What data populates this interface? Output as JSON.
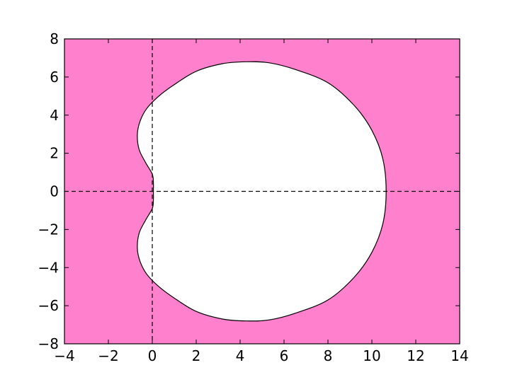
{
  "chart_data": {
    "type": "area",
    "title": "",
    "xlabel": "",
    "ylabel": "",
    "xlim": [
      -4,
      14
    ],
    "ylim": [
      -8,
      8
    ],
    "xticks": [
      -4,
      -2,
      0,
      2,
      4,
      6,
      8,
      10,
      12,
      14
    ],
    "yticks": [
      -8,
      -6,
      -4,
      -2,
      0,
      2,
      4,
      6,
      8
    ],
    "xtick_labels": [
      "−4",
      "−2",
      "0",
      "2",
      "4",
      "6",
      "8",
      "10",
      "12",
      "14"
    ],
    "ytick_labels": [
      "−8",
      "−6",
      "−4",
      "−2",
      "0",
      "2",
      "4",
      "6",
      "8"
    ],
    "grid": false,
    "legend": "none",
    "colors": {
      "shaded_region": "#ff80cc",
      "boundary": "#000000",
      "unshaded_region": "#ffffff",
      "axis_lines": "#000000"
    },
    "reference_lines": [
      {
        "orientation": "horizontal",
        "value": 0,
        "style": "dashed"
      },
      {
        "orientation": "vertical",
        "value": 0,
        "style": "dashed"
      }
    ],
    "unshaded_region_boundary": [
      [
        10.65,
        0.0
      ],
      [
        10.5,
        1.7
      ],
      [
        10.0,
        3.2
      ],
      [
        9.2,
        4.5
      ],
      [
        8.0,
        5.7
      ],
      [
        6.5,
        6.4
      ],
      [
        5.3,
        6.75
      ],
      [
        4.25,
        6.8
      ],
      [
        3.2,
        6.7
      ],
      [
        2.0,
        6.3
      ],
      [
        1.0,
        5.6
      ],
      [
        0.3,
        5.0
      ],
      [
        -0.25,
        4.35
      ],
      [
        -0.55,
        3.7
      ],
      [
        -0.68,
        3.0
      ],
      [
        -0.6,
        2.2
      ],
      [
        -0.3,
        1.5
      ],
      [
        0.0,
        0.9
      ],
      [
        0.05,
        0.45
      ],
      [
        0.05,
        0.0
      ],
      [
        0.05,
        -0.45
      ],
      [
        0.0,
        -0.9
      ],
      [
        -0.3,
        -1.5
      ],
      [
        -0.6,
        -2.2
      ],
      [
        -0.68,
        -3.0
      ],
      [
        -0.55,
        -3.7
      ],
      [
        -0.25,
        -4.35
      ],
      [
        0.3,
        -5.0
      ],
      [
        1.0,
        -5.6
      ],
      [
        2.0,
        -6.3
      ],
      [
        3.2,
        -6.7
      ],
      [
        4.25,
        -6.8
      ],
      [
        5.3,
        -6.75
      ],
      [
        6.5,
        -6.4
      ],
      [
        8.0,
        -5.7
      ],
      [
        9.2,
        -4.5
      ],
      [
        10.0,
        -3.2
      ],
      [
        10.5,
        -1.7
      ]
    ]
  }
}
